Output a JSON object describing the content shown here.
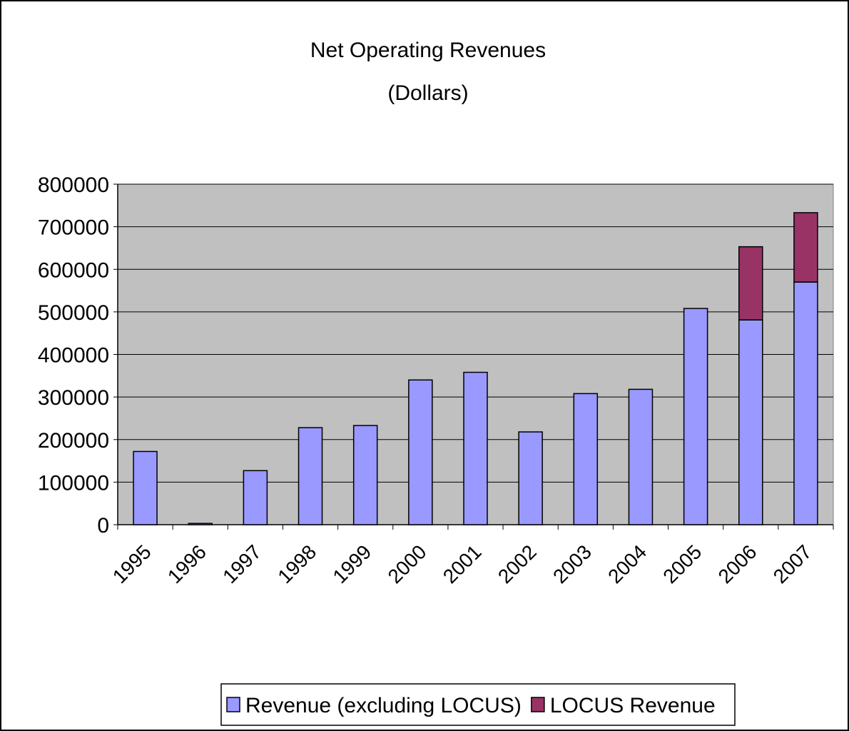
{
  "chart_data": {
    "type": "stacked_bar",
    "title": "Net Operating Revenues",
    "subtitle": "(Dollars)",
    "categories": [
      "1995",
      "1996",
      "1997",
      "1998",
      "1999",
      "2000",
      "2001",
      "2002",
      "2003",
      "2004",
      "2005",
      "2006",
      "2007"
    ],
    "series": [
      {
        "name": "Revenue (excluding LOCUS)",
        "color": "#9999ff",
        "values": [
          172000,
          3000,
          127000,
          228000,
          233000,
          340000,
          358000,
          218000,
          308000,
          318000,
          508000,
          481000,
          570000
        ]
      },
      {
        "name": "LOCUS Revenue",
        "color": "#993366",
        "values": [
          null,
          null,
          null,
          null,
          null,
          null,
          null,
          null,
          null,
          null,
          null,
          172000,
          163000
        ]
      }
    ],
    "ylim": [
      0,
      800000
    ],
    "yticks": [
      0,
      100000,
      200000,
      300000,
      400000,
      500000,
      600000,
      700000,
      800000
    ],
    "grid": true,
    "legend": "bottom"
  }
}
